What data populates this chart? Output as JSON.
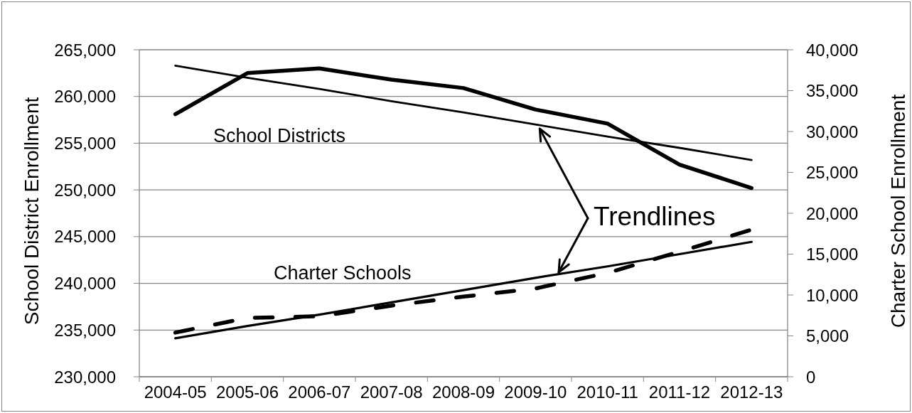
{
  "chart_data": {
    "type": "line",
    "ylabel": "School District Enrollment",
    "y2label": "Charter School Enrollment",
    "annotations": [
      {
        "text": "Trendlines",
        "x": "2009-10",
        "y": 257000
      }
    ],
    "categories": [
      "2004-05",
      "2005-06",
      "2006-07",
      "2007-08",
      "2008-09",
      "2009-10",
      "2010-11",
      "2011-12",
      "2012-13"
    ],
    "series": [
      {
        "name": "School Districts",
        "color": "#000000",
        "values": [
          258100,
          262500,
          263000,
          261800,
          260900,
          258600,
          257100,
          252700,
          250200
        ]
      },
      {
        "type": "line",
        "color": "#000000",
        "values": [
          263300,
          262000,
          260800,
          259500,
          258300,
          257000,
          255700,
          254500,
          253200
        ]
      },
      {
        "name": "Charter Schools",
        "color": "#000000",
        "axis": "y2",
        "line_style": "dashed",
        "values": [
          5400,
          7200,
          7400,
          8700,
          9800,
          10800,
          12700,
          15300,
          18000
        ]
      },
      {
        "type": "line",
        "color": "#000000",
        "axis": "y2",
        "values": [
          4700,
          6200,
          7600,
          9100,
          10600,
          12100,
          13500,
          15000,
          16500
        ]
      }
    ],
    "ylim": [
      230000,
      265000
    ],
    "yticks": [
      {
        "value": 230000,
        "label": "230,000"
      },
      {
        "value": 235000,
        "label": "235,000"
      },
      {
        "value": 240000,
        "label": "240,000"
      },
      {
        "value": 245000,
        "label": "245,000"
      },
      {
        "value": 250000,
        "label": "250,000"
      },
      {
        "value": 255000,
        "label": "255,000"
      },
      {
        "value": 260000,
        "label": "260,000"
      },
      {
        "value": 265000,
        "label": "265,000"
      }
    ],
    "y2lim": [
      0,
      40000
    ],
    "y2ticks": [
      0,
      {
        "value": 5000,
        "label": "5,000"
      },
      {
        "value": 10000,
        "label": "10,000"
      },
      {
        "value": 15000,
        "label": "15,000"
      },
      {
        "value": 20000,
        "label": "20,000"
      },
      {
        "value": 25000,
        "label": "25,000"
      },
      {
        "value": 30000,
        "label": "30,000"
      },
      {
        "value": 35000,
        "label": "35,000"
      },
      {
        "value": 40000,
        "label": "40,000"
      }
    ],
    "grid": "y",
    "marker": "none",
    "line_style": "solid"
  }
}
